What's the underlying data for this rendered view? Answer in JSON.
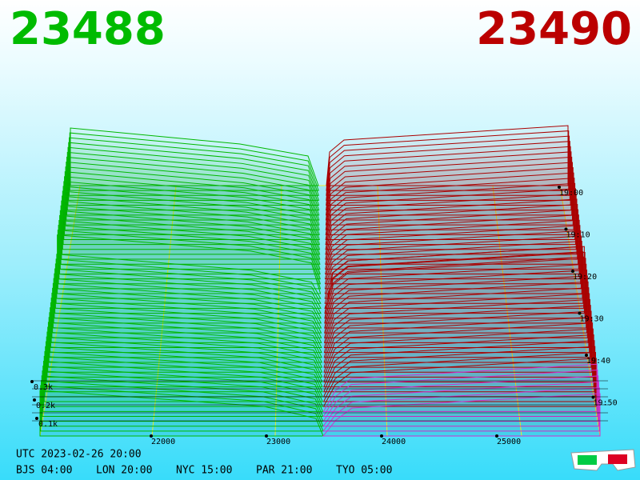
{
  "header": {
    "bid": "23488",
    "ask": "23490"
  },
  "axis": {
    "price_ticks": [
      "22000",
      "23000",
      "24000",
      "25000"
    ],
    "depth_ticks": [
      "0.3k",
      "0.2k",
      "0.1k"
    ],
    "time_ticks": [
      "19:00",
      "19:10",
      "19:20",
      "19:30",
      "19:40",
      "19:50"
    ]
  },
  "footer": {
    "utc": "UTC 2023-02-26 20:00",
    "zones": [
      "BJS 04:00",
      "LON 20:00",
      "NYC 15:00",
      "PAR 21:00",
      "TYO 05:00"
    ]
  }
}
